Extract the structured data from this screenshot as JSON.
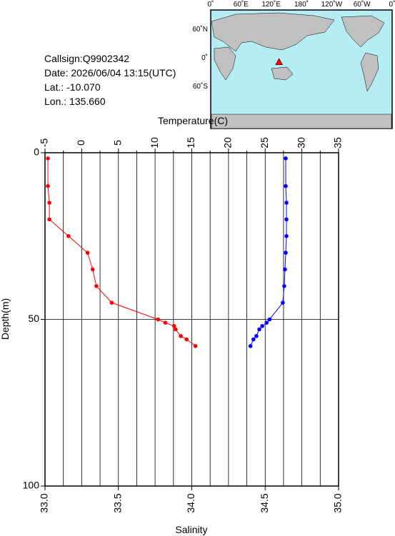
{
  "chart_data": {
    "type": "profile",
    "info": [
      "Callsign:Q9902342",
      "Date:  2026/06/04 13:15(UTC)",
      "Lat.:  -10.070",
      "Lon.:  135.660"
    ],
    "map": {
      "lon_labels": [
        "0˚",
        "60˚E",
        "120˚E",
        "180˚",
        "120˚W",
        "60˚W",
        "0˚"
      ],
      "lat_labels": [
        "60˚N",
        "0˚",
        "60˚S"
      ],
      "float_lat": -10.07,
      "float_lon": 135.66,
      "float_color": "#ff0000"
    },
    "x2_label": "Temperature(C)",
    "x_label": "Salinity",
    "y_label": "Depth(m)",
    "ylim": [
      0,
      100
    ],
    "yticks": [
      0,
      50,
      100
    ],
    "y_inverted": true,
    "xlim": [
      33.0,
      35.0
    ],
    "xticks": [
      {
        "value": 33.0,
        "label": "33.0"
      },
      {
        "value": 33.5,
        "label": "33.5"
      },
      {
        "value": 34.0,
        "label": "34.0"
      },
      {
        "value": 34.5,
        "label": "34.5"
      },
      {
        "value": 35.0,
        "label": "35.0"
      }
    ],
    "x2lim": [
      -5,
      35
    ],
    "x2ticks": [
      -5,
      0,
      5,
      10,
      15,
      20,
      25,
      30,
      35
    ],
    "x2_minor_ticks": [
      -2.5,
      2.5,
      7.5,
      12.5,
      17.5,
      22.5,
      27.5,
      32.5
    ],
    "series": [
      {
        "color": "#ff0000",
        "axis": "x2",
        "depth": [
          1.7,
          10,
          15,
          20,
          25,
          30,
          35,
          40,
          45,
          50,
          51,
          52,
          53,
          55,
          56,
          58
        ],
        "values": [
          -4.6,
          -4.6,
          -4.4,
          -4.4,
          -1.8,
          0.8,
          1.5,
          2.0,
          4.1,
          10.4,
          11.4,
          12.6,
          12.8,
          13.5,
          14.3,
          15.5
        ]
      },
      {
        "color": "#0000ff",
        "axis": "x",
        "depth": [
          1.7,
          10,
          15,
          20,
          25,
          30,
          35,
          40,
          45,
          50,
          51,
          52,
          53,
          55,
          56,
          58
        ],
        "values": [
          34.64,
          34.64,
          34.645,
          34.645,
          34.645,
          34.64,
          34.635,
          34.63,
          34.62,
          34.53,
          34.51,
          34.48,
          34.46,
          34.44,
          34.42,
          34.4
        ]
      }
    ]
  }
}
